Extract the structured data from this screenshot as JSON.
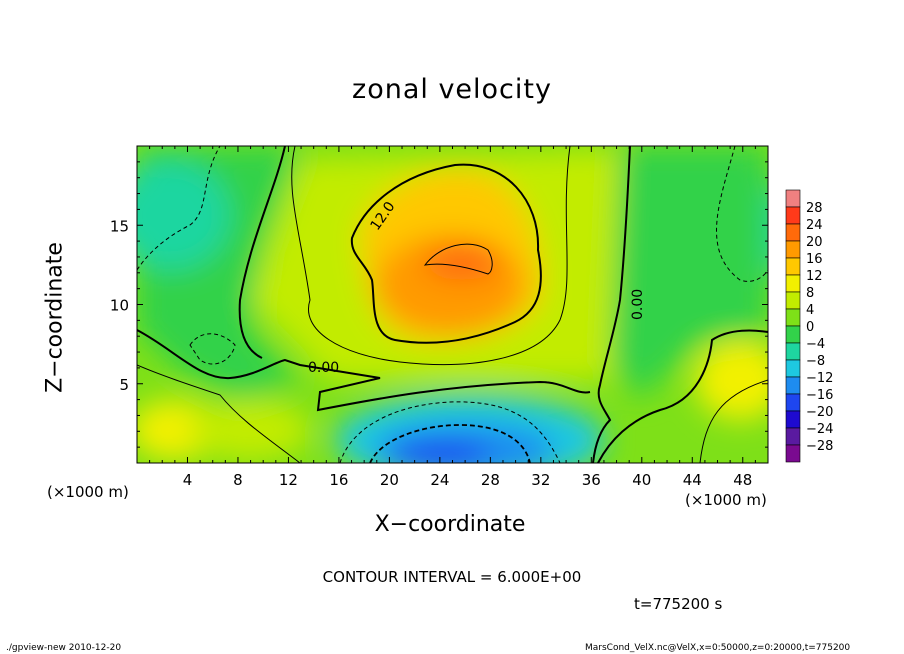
{
  "chart_data": {
    "type": "heatmap",
    "title": "zonal velocity",
    "xlabel": "X−coordinate",
    "ylabel": "Z−coordinate",
    "x_unit_left": "(×1000 m)",
    "x_unit_right": "(×1000 m)",
    "xlim": [
      0,
      50
    ],
    "ylim": [
      0,
      20
    ],
    "xticks": [
      "4",
      "8",
      "12",
      "16",
      "20",
      "24",
      "28",
      "32",
      "36",
      "40",
      "44",
      "48"
    ],
    "yticks": [
      "5",
      "10",
      "15"
    ],
    "colorbar_levels": [
      "28",
      "24",
      "20",
      "16",
      "12",
      "8",
      "4",
      "0",
      "−4",
      "−8",
      "−12",
      "−16",
      "−20",
      "−24",
      "−28"
    ],
    "colorbar_colors": [
      "#f08080",
      "#ff3a1a",
      "#ff6a0a",
      "#ff9a00",
      "#ffc800",
      "#f2f000",
      "#c2ec00",
      "#7ee018",
      "#32d24a",
      "#1ed6a0",
      "#1ec8e0",
      "#1e8cf0",
      "#1e46f0",
      "#1e0ad0",
      "#5a1aa0",
      "#7a0a90"
    ],
    "contour_labels": [
      "12.0",
      "0.00",
      "0.00"
    ],
    "contour_interval": "CONTOUR INTERVAL = 6.000E+00",
    "time": "t=775200 s",
    "grid": false,
    "legend": "right"
  },
  "footer": {
    "left": "./gpview-new 2010-12-20",
    "right": "MarsCond_VelX.nc@VelX,x=0:50000,z=0:20000,t=775200"
  }
}
